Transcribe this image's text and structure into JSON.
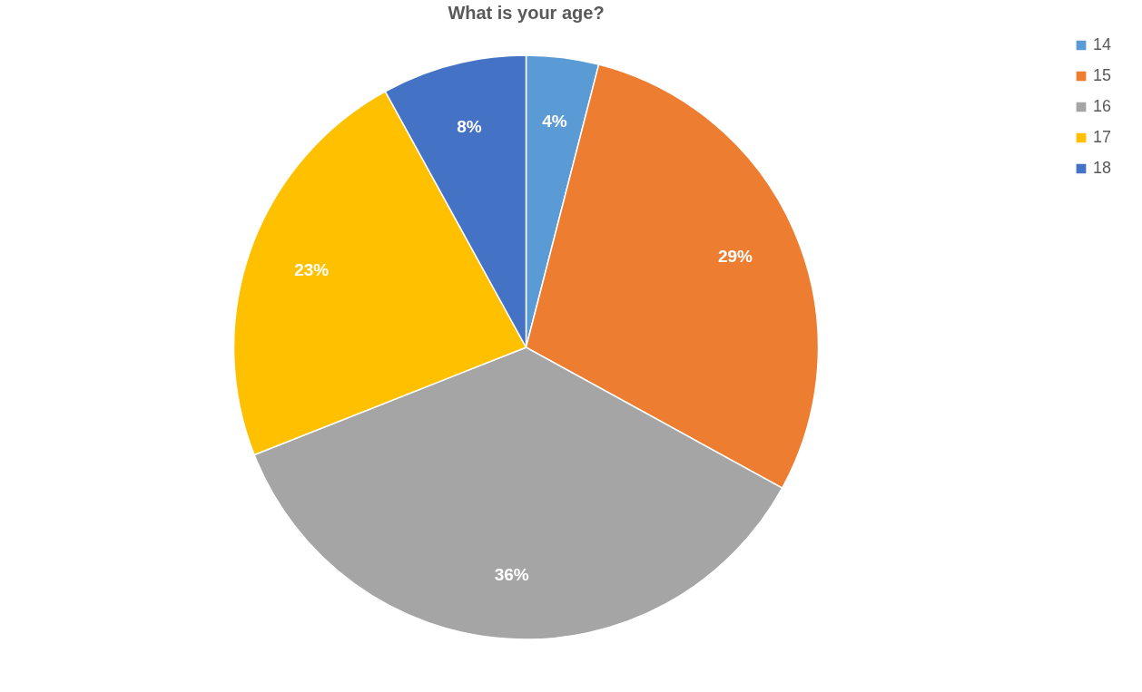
{
  "chart_data": {
    "type": "pie",
    "title": "What is your age?",
    "categories": [
      "14",
      "15",
      "16",
      "17",
      "18"
    ],
    "values": [
      4,
      29,
      36,
      23,
      8
    ],
    "colors": [
      "#5b9bd5",
      "#ed7d31",
      "#a5a5a5",
      "#ffc000",
      "#4472c4"
    ],
    "value_labels": [
      "4%",
      "29%",
      "36%",
      "23%",
      "8%"
    ],
    "legend": "right"
  }
}
